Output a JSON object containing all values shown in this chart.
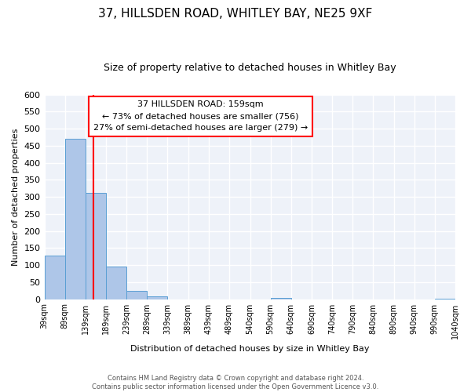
{
  "title": "37, HILLSDEN ROAD, WHITLEY BAY, NE25 9XF",
  "subtitle": "Size of property relative to detached houses in Whitley Bay",
  "xlabel": "Distribution of detached houses by size in Whitley Bay",
  "ylabel": "Number of detached properties",
  "bin_edges": [
    39,
    89,
    139,
    189,
    239,
    289,
    339,
    389,
    439,
    489,
    540,
    590,
    640,
    690,
    740,
    790,
    840,
    890,
    940,
    990,
    1040
  ],
  "bar_heights": [
    128,
    470,
    311,
    96,
    25,
    8,
    0,
    0,
    0,
    0,
    0,
    3,
    0,
    0,
    0,
    0,
    0,
    0,
    0,
    2
  ],
  "bar_color": "#aec6e8",
  "bar_edgecolor": "#5a9fd4",
  "property_line_x": 159,
  "property_line_color": "red",
  "annotation_line1": "37 HILLSDEN ROAD: 159sqm",
  "annotation_line2": "← 73% of detached houses are smaller (756)",
  "annotation_line3": "27% of semi-detached houses are larger (279) →",
  "annotation_box_color": "white",
  "annotation_box_edgecolor": "red",
  "ylim": [
    0,
    600
  ],
  "yticks": [
    0,
    50,
    100,
    150,
    200,
    250,
    300,
    350,
    400,
    450,
    500,
    550,
    600
  ],
  "tick_labels": [
    "39sqm",
    "89sqm",
    "139sqm",
    "189sqm",
    "239sqm",
    "289sqm",
    "339sqm",
    "389sqm",
    "439sqm",
    "489sqm",
    "540sqm",
    "590sqm",
    "640sqm",
    "690sqm",
    "740sqm",
    "790sqm",
    "840sqm",
    "890sqm",
    "940sqm",
    "990sqm",
    "1040sqm"
  ],
  "footer_line1": "Contains HM Land Registry data © Crown copyright and database right 2024.",
  "footer_line2": "Contains public sector information licensed under the Open Government Licence v3.0.",
  "background_color": "#eef2f9",
  "grid_color": "white",
  "title_fontsize": 11,
  "subtitle_fontsize": 9
}
